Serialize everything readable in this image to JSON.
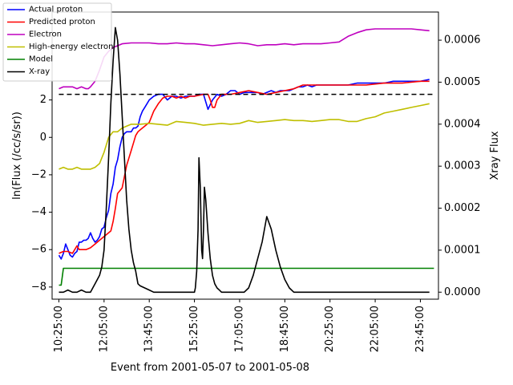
{
  "chart_data": {
    "type": "line",
    "xlabel": "Event from 2001-05-07 to 2001-05-08",
    "ylabel_left": "ln(Flux (/cc/s/sr))",
    "ylabel_right": "Xray Flux",
    "x_ticks": [
      "10:25:00",
      "12:05:00",
      "13:45:00",
      "15:25:00",
      "17:05:00",
      "18:45:00",
      "20:25:00",
      "22:05:00",
      "23:45:00"
    ],
    "x_range_minutes": [
      -15,
      840
    ],
    "ylim_left": [
      -8.65,
      6.7
    ],
    "yticks_left": [
      -8,
      -6,
      -4,
      -2,
      0,
      2
    ],
    "ylim_right": [
      -1.67e-05,
      0.000667
    ],
    "yticks_right": [
      "0.0000",
      "0.0001",
      "0.0002",
      "0.0003",
      "0.0004",
      "0.0005",
      "0.0006"
    ],
    "yticks_right_values": [
      0,
      0.0001,
      0.0002,
      0.0003,
      0.0004,
      0.0005,
      0.0006
    ],
    "threshold_line": {
      "y": 2.3,
      "style": "dashed",
      "color": "#000000"
    },
    "legend_position": "top-left",
    "series": [
      {
        "name": "Actual proton",
        "color": "#0000ff",
        "axis": "left",
        "x": [
          0,
          5,
          10,
          15,
          20,
          25,
          30,
          35,
          40,
          45,
          50,
          55,
          60,
          65,
          70,
          75,
          80,
          85,
          90,
          95,
          100,
          105,
          110,
          115,
          120,
          125,
          130,
          135,
          140,
          145,
          150,
          155,
          160,
          165,
          170,
          175,
          180,
          185,
          190,
          195,
          200,
          210,
          220,
          230,
          240,
          250,
          260,
          270,
          280,
          290,
          300,
          310,
          320,
          330,
          340,
          350,
          360,
          370,
          380,
          390,
          400,
          410,
          420,
          430,
          440,
          450,
          460,
          470,
          480,
          490,
          500,
          510,
          520,
          530,
          540,
          550,
          560,
          570,
          580,
          590,
          600,
          620,
          640,
          660,
          680,
          700,
          720,
          740,
          760,
          780,
          800,
          820
        ],
        "y": [
          -6.3,
          -6.5,
          -6.2,
          -5.7,
          -6.0,
          -6.3,
          -6.4,
          -6.2,
          -6.1,
          -5.6,
          -5.6,
          -5.5,
          -5.5,
          -5.4,
          -5.1,
          -5.4,
          -5.6,
          -5.5,
          -5.3,
          -4.9,
          -4.8,
          -4.3,
          -3.9,
          -3.0,
          -2.5,
          -1.6,
          -1.2,
          -0.5,
          0.0,
          0.2,
          0.3,
          0.3,
          0.3,
          0.5,
          0.5,
          0.6,
          1.1,
          1.4,
          1.6,
          1.8,
          2.0,
          2.2,
          2.3,
          2.3,
          2.0,
          2.2,
          2.2,
          2.1,
          2.2,
          2.2,
          2.2,
          2.3,
          2.3,
          1.5,
          2.0,
          2.3,
          2.2,
          2.3,
          2.5,
          2.5,
          2.3,
          2.4,
          2.4,
          2.4,
          2.4,
          2.3,
          2.4,
          2.5,
          2.4,
          2.5,
          2.5,
          2.5,
          2.6,
          2.7,
          2.7,
          2.8,
          2.7,
          2.8,
          2.8,
          2.8,
          2.8,
          2.8,
          2.8,
          2.9,
          2.9,
          2.9,
          2.9,
          3.0,
          3.0,
          3.0,
          3.0,
          3.1
        ]
      },
      {
        "name": "Predicted proton",
        "color": "#ff0000",
        "axis": "left",
        "x": [
          0,
          10,
          20,
          30,
          35,
          40,
          45,
          50,
          60,
          70,
          80,
          90,
          100,
          110,
          115,
          120,
          125,
          130,
          140,
          150,
          160,
          165,
          170,
          175,
          180,
          190,
          200,
          210,
          220,
          230,
          240,
          250,
          260,
          270,
          280,
          290,
          300,
          320,
          330,
          335,
          340,
          345,
          350,
          360,
          380,
          400,
          420,
          440,
          460,
          480,
          500,
          520,
          540,
          560,
          580,
          600,
          640,
          680,
          720,
          760,
          800,
          820
        ],
        "y": [
          -6.2,
          -6.1,
          -6.1,
          -6.2,
          -6.0,
          -5.8,
          -6.0,
          -6.0,
          -6.0,
          -5.9,
          -5.7,
          -5.5,
          -5.3,
          -5.1,
          -5.0,
          -4.5,
          -3.8,
          -3.0,
          -2.7,
          -1.5,
          -0.7,
          -0.3,
          0.1,
          0.3,
          0.4,
          0.6,
          0.8,
          1.4,
          1.8,
          2.1,
          2.2,
          2.2,
          2.1,
          2.2,
          2.1,
          2.2,
          2.2,
          2.3,
          2.3,
          2.0,
          1.6,
          1.6,
          2.0,
          2.3,
          2.3,
          2.4,
          2.5,
          2.4,
          2.3,
          2.4,
          2.5,
          2.6,
          2.8,
          2.8,
          2.8,
          2.8,
          2.8,
          2.8,
          2.9,
          2.9,
          3.0,
          3.0
        ]
      },
      {
        "name": "Electron",
        "color": "#bf00bf",
        "axis": "left",
        "x": [
          0,
          10,
          20,
          30,
          40,
          50,
          60,
          65,
          70,
          80,
          90,
          100,
          110,
          120,
          130,
          140,
          160,
          180,
          200,
          220,
          240,
          260,
          280,
          300,
          320,
          340,
          360,
          380,
          400,
          420,
          440,
          460,
          480,
          500,
          520,
          540,
          560,
          580,
          600,
          620,
          640,
          660,
          680,
          700,
          720,
          740,
          760,
          780,
          800,
          820
        ],
        "y": [
          2.6,
          2.7,
          2.7,
          2.7,
          2.6,
          2.7,
          2.6,
          2.6,
          2.7,
          3.0,
          3.6,
          4.3,
          4.6,
          4.8,
          4.9,
          5.0,
          5.05,
          5.05,
          5.05,
          5.0,
          5.0,
          5.05,
          5.0,
          5.0,
          4.95,
          4.9,
          4.95,
          5.0,
          5.05,
          5.0,
          4.9,
          4.95,
          4.95,
          5.0,
          4.95,
          5.0,
          5.0,
          5.0,
          5.05,
          5.1,
          5.4,
          5.6,
          5.75,
          5.8,
          5.8,
          5.8,
          5.8,
          5.8,
          5.75,
          5.7
        ]
      },
      {
        "name": "High-energy electron",
        "color": "#bfbf00",
        "axis": "left",
        "x": [
          0,
          10,
          20,
          30,
          40,
          50,
          60,
          70,
          80,
          90,
          100,
          110,
          120,
          130,
          140,
          160,
          180,
          200,
          220,
          240,
          260,
          280,
          300,
          320,
          340,
          360,
          380,
          400,
          420,
          440,
          460,
          480,
          500,
          520,
          540,
          560,
          580,
          600,
          620,
          640,
          660,
          680,
          700,
          720,
          740,
          760,
          780,
          800,
          820
        ],
        "y": [
          -1.7,
          -1.6,
          -1.7,
          -1.7,
          -1.6,
          -1.7,
          -1.7,
          -1.7,
          -1.6,
          -1.4,
          -0.8,
          0.0,
          0.3,
          0.3,
          0.5,
          0.7,
          0.7,
          0.75,
          0.7,
          0.65,
          0.85,
          0.8,
          0.75,
          0.65,
          0.7,
          0.75,
          0.7,
          0.75,
          0.9,
          0.8,
          0.85,
          0.9,
          0.95,
          0.9,
          0.9,
          0.85,
          0.9,
          0.95,
          0.95,
          0.85,
          0.85,
          1.0,
          1.1,
          1.3,
          1.4,
          1.5,
          1.6,
          1.7,
          1.8
        ]
      },
      {
        "name": "Model",
        "color": "#008000",
        "axis": "left",
        "x": [
          0,
          5,
          10,
          830
        ],
        "y": [
          -7.9,
          -7.9,
          -7.0,
          -7.0
        ]
      },
      {
        "name": "X-ray",
        "color": "#000000",
        "axis": "right",
        "x": [
          0,
          10,
          20,
          30,
          40,
          50,
          60,
          70,
          80,
          90,
          95,
          100,
          105,
          110,
          115,
          120,
          125,
          130,
          135,
          140,
          145,
          150,
          155,
          160,
          165,
          170,
          175,
          180,
          190,
          200,
          210,
          220,
          230,
          240,
          250,
          260,
          270,
          280,
          290,
          300,
          302,
          305,
          308,
          310,
          313,
          316,
          318,
          320,
          322,
          325,
          330,
          335,
          340,
          345,
          350,
          355,
          360,
          370,
          380,
          390,
          400,
          410,
          420,
          430,
          440,
          450,
          460,
          470,
          480,
          490,
          500,
          510,
          520,
          530,
          540,
          550,
          560,
          570,
          580,
          590,
          600,
          620,
          640,
          660,
          680,
          700,
          720,
          740,
          760,
          780,
          800,
          820
        ],
        "y": [
          0.0,
          0.0,
          5e-06,
          0.0,
          0.0,
          5e-06,
          0.0,
          0.0,
          2e-05,
          4e-05,
          6e-05,
          0.0001,
          0.0002,
          0.00032,
          0.00045,
          0.00055,
          0.00063,
          0.0006,
          0.00052,
          0.00042,
          0.00032,
          0.00022,
          0.00015,
          0.0001,
          7e-05,
          5e-05,
          2e-05,
          1.5e-05,
          1e-05,
          5e-06,
          0.0,
          0.0,
          0.0,
          0.0,
          0.0,
          0.0,
          0.0,
          0.0,
          0.0,
          0.0,
          1e-05,
          5e-05,
          0.00015,
          0.00032,
          0.00025,
          0.0001,
          8e-05,
          0.00015,
          0.00025,
          0.00022,
          0.00014,
          8e-05,
          4e-05,
          2e-05,
          1e-05,
          5e-06,
          0.0,
          0.0,
          0.0,
          0.0,
          0.0,
          0.0,
          1e-05,
          4e-05,
          8e-05,
          0.00012,
          0.00018,
          0.00015,
          0.0001,
          6e-05,
          3e-05,
          1e-05,
          0.0,
          0.0,
          0.0,
          0.0,
          0.0,
          0.0,
          0.0,
          0.0,
          0.0,
          0.0,
          0.0,
          0.0,
          0.0,
          0.0,
          0.0,
          0.0,
          0.0,
          0.0,
          0.0,
          0.0
        ]
      }
    ]
  }
}
